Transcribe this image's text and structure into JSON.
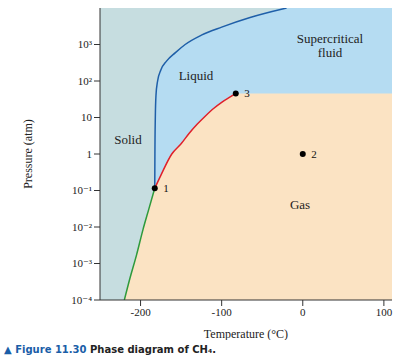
{
  "chart_data": {
    "type": "line",
    "caption": {
      "label": "▲ Figure 11.30",
      "text": "Phase diagram of CH₄."
    },
    "x_label": "Temperature (°C)",
    "y_label": "Pressure (atm)",
    "log": "y",
    "xlim": [
      -250,
      110
    ],
    "xticks": [
      -200,
      -100,
      0,
      100
    ],
    "ylim": [
      0.0001,
      10000
    ],
    "yticks": [
      {
        "value": 0.0001,
        "label": "10⁻⁴"
      },
      {
        "value": 0.001,
        "label": "10⁻³"
      },
      {
        "value": 0.01,
        "label": "10⁻²"
      },
      {
        "value": 0.1,
        "label": "10⁻¹"
      },
      1,
      10,
      {
        "value": 100,
        "label": "10²"
      },
      {
        "value": 1000,
        "label": "10³"
      }
    ],
    "regions": [
      {
        "label": "Solid",
        "color": "#c6dde0"
      },
      {
        "label": "Liquid",
        "color": "#b5dcf2"
      },
      {
        "label": "Gas",
        "color": "#fbe3c3"
      },
      {
        "label": "Supercritical fluid"
      }
    ],
    "series": [
      {
        "color": "#1f5fa8",
        "x": [
          -182.5,
          -182.3,
          -181.8,
          -181,
          -179,
          -175,
          -168,
          -157,
          -145,
          -125,
          -100,
          -65,
          -20
        ],
        "values": [
          0.115,
          1,
          10,
          40,
          100,
          200,
          350,
          600,
          1000,
          1800,
          3000,
          5500,
          10000
        ]
      },
      {
        "color": "#e0202a",
        "x": [
          -182.5,
          -175,
          -161.5,
          -150,
          -140,
          -130,
          -120,
          -110,
          -100,
          -90,
          -82.6
        ],
        "values": [
          0.115,
          0.26,
          1,
          1.9,
          3.7,
          6.6,
          11,
          17.6,
          26,
          36,
          45.4
        ]
      },
      {
        "color": "#2e9a3c",
        "x": [
          -220,
          -213,
          -205,
          -197,
          -190,
          -182.5
        ],
        "values": [
          0.0001,
          0.0004,
          0.0017,
          0.0085,
          0.03,
          0.115
        ]
      }
    ],
    "points": {
      "color": "#000000",
      "labels": [
        "1",
        "2",
        "3"
      ],
      "x": [
        -182.5,
        0,
        -82.6
      ],
      "values": [
        0.115,
        1,
        45.4
      ]
    }
  }
}
